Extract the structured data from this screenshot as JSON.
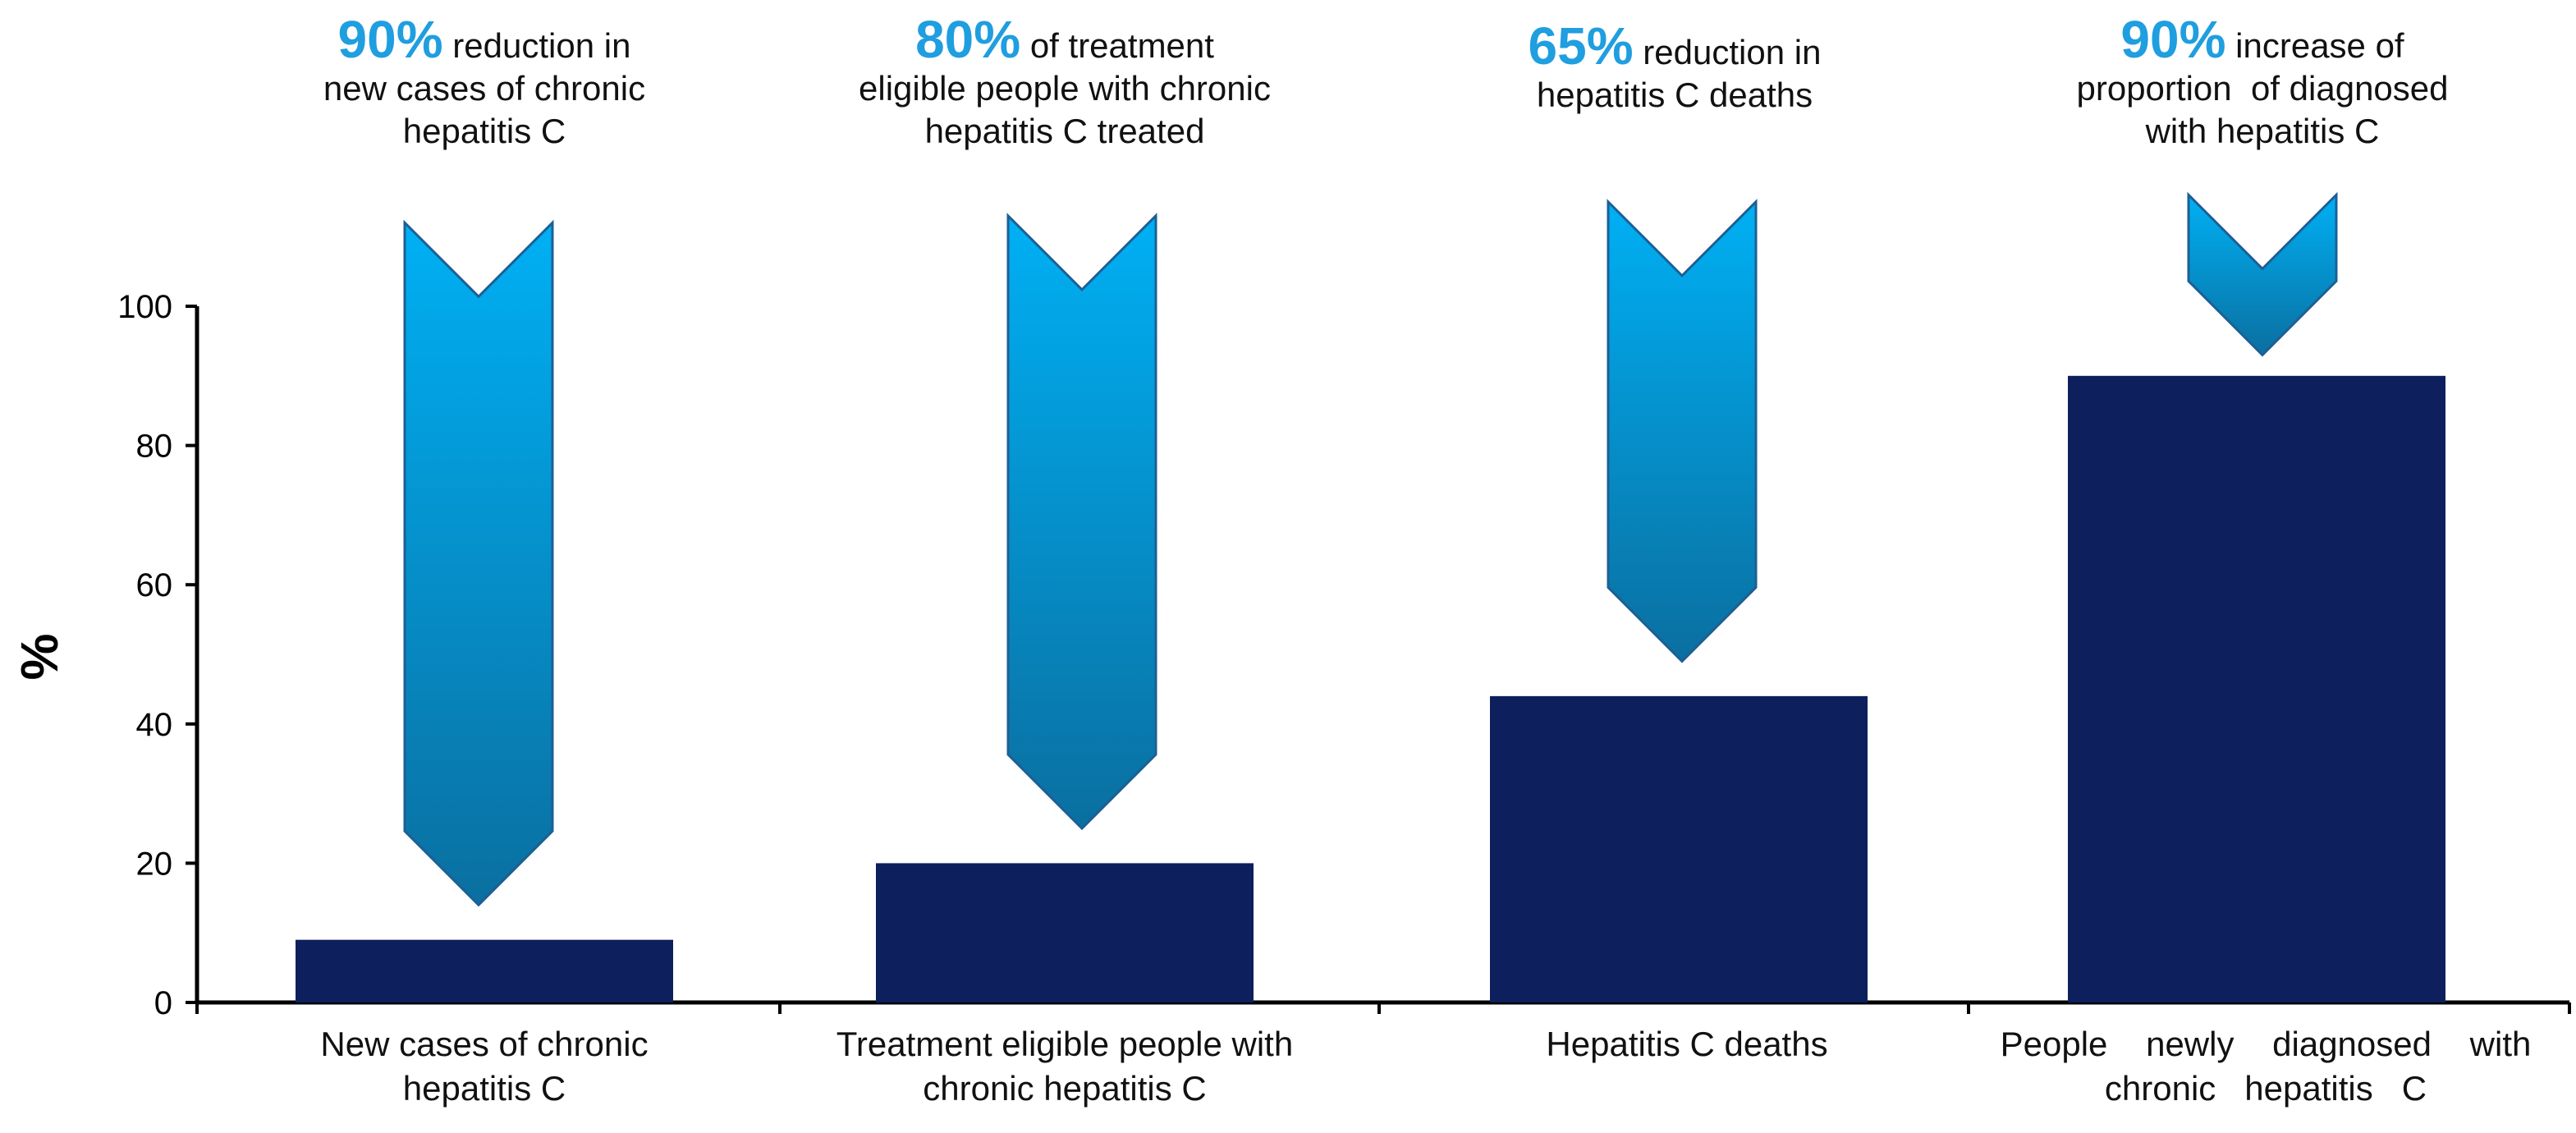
{
  "chart_data": {
    "type": "bar",
    "title": "",
    "xlabel": "",
    "ylabel": "%",
    "ylim": [
      0,
      100
    ],
    "yticks": [
      0,
      20,
      40,
      60,
      80,
      100
    ],
    "categories": [
      [
        "New cases of chronic",
        "hepatitis C"
      ],
      [
        "Treatment eligible people with",
        "chronic hepatitis C"
      ],
      [
        "Hepatitis C deaths"
      ],
      [
        "People    newly    diagnosed    with",
        "chronic   hepatitis   C"
      ]
    ],
    "values": [
      9,
      20,
      44,
      90
    ],
    "bar_color": "#0d1f5c",
    "targets": [
      {
        "pct": "90%",
        "lines": [
          " reduction in",
          "new cases of chronic",
          "hepatitis C"
        ],
        "arrow_from": 112,
        "arrow_to": 14
      },
      {
        "pct": "80%",
        "lines": [
          " of treatment",
          "eligible people with chronic",
          "hepatitis C treated"
        ],
        "arrow_from": 113,
        "arrow_to": 25
      },
      {
        "pct": "65%",
        "lines": [
          " reduction in",
          "hepatitis C deaths"
        ],
        "arrow_from": 115,
        "arrow_to": 49
      },
      {
        "pct": "90%",
        "lines": [
          " increase of",
          "proportion  of diagnosed",
          "with hepatitis C"
        ],
        "arrow_from": 116,
        "arrow_to": 93
      }
    ],
    "annotation_color": "#1f9ee0",
    "arrow_colors": [
      "#00b0f4",
      "#0a6fa0"
    ]
  }
}
